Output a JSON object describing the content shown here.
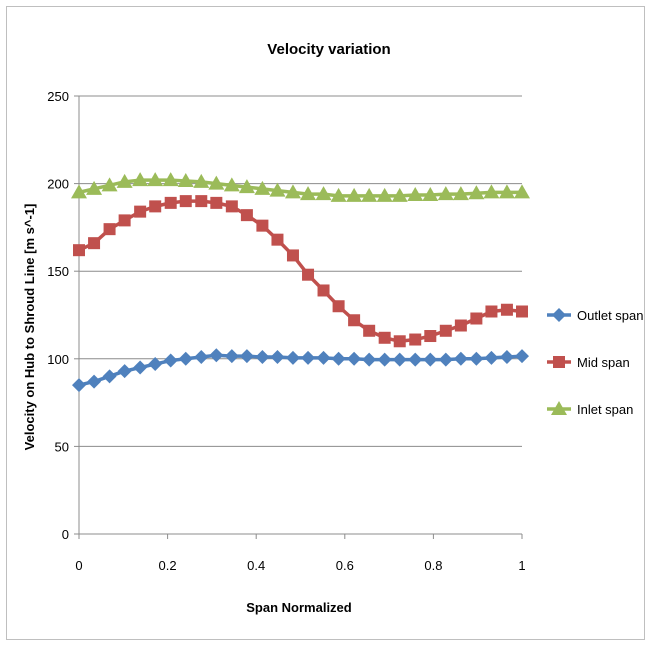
{
  "chart_data": {
    "type": "line",
    "title": "Velocity variation",
    "xlabel": "Span Normalized",
    "ylabel": "Velocity on Hub to Shroud Line [m s^-1]",
    "xlim": [
      0,
      1
    ],
    "ylim": [
      0,
      250
    ],
    "xticks": [
      "0",
      "0.2",
      "0.4",
      "0.6",
      "0.8",
      "1"
    ],
    "xtick_values": [
      0,
      0.2,
      0.4,
      0.6,
      0.8,
      1
    ],
    "yticks": [
      "0",
      "50",
      "100",
      "150",
      "200",
      "250"
    ],
    "ytick_values": [
      0,
      50,
      100,
      150,
      200,
      250
    ],
    "grid": "horizontal",
    "legend_position": "right",
    "series": [
      {
        "name": "Outlet span",
        "color": "#4f81bd",
        "marker": "diamond",
        "x": [
          0,
          0.034,
          0.069,
          0.103,
          0.138,
          0.172,
          0.207,
          0.241,
          0.276,
          0.31,
          0.345,
          0.379,
          0.414,
          0.448,
          0.483,
          0.517,
          0.552,
          0.586,
          0.621,
          0.655,
          0.69,
          0.724,
          0.759,
          0.793,
          0.828,
          0.862,
          0.897,
          0.931,
          0.966,
          1
        ],
        "y": [
          85,
          87,
          90,
          93,
          95,
          97,
          99,
          100,
          101,
          102,
          101.5,
          101.5,
          101,
          101,
          100.5,
          100.5,
          100.5,
          100,
          100,
          99.5,
          99.5,
          99.5,
          99.5,
          99.5,
          99.5,
          100,
          100,
          100.5,
          101,
          101.5
        ]
      },
      {
        "name": "Mid span",
        "color": "#c0504d",
        "marker": "square",
        "x": [
          0,
          0.034,
          0.069,
          0.103,
          0.138,
          0.172,
          0.207,
          0.241,
          0.276,
          0.31,
          0.345,
          0.379,
          0.414,
          0.448,
          0.483,
          0.517,
          0.552,
          0.586,
          0.621,
          0.655,
          0.69,
          0.724,
          0.759,
          0.793,
          0.828,
          0.862,
          0.897,
          0.931,
          0.966,
          1
        ],
        "y": [
          162,
          166,
          174,
          179,
          184,
          187,
          189,
          190,
          190,
          189,
          187,
          182,
          176,
          168,
          159,
          148,
          139,
          130,
          122,
          116,
          112,
          110,
          111,
          113,
          116,
          119,
          123,
          127,
          128,
          127
        ]
      },
      {
        "name": "Inlet span",
        "color": "#9bbb59",
        "marker": "triangle",
        "x": [
          0,
          0.034,
          0.069,
          0.103,
          0.138,
          0.172,
          0.207,
          0.241,
          0.276,
          0.31,
          0.345,
          0.379,
          0.414,
          0.448,
          0.483,
          0.517,
          0.552,
          0.586,
          0.621,
          0.655,
          0.69,
          0.724,
          0.759,
          0.793,
          0.828,
          0.862,
          0.897,
          0.931,
          0.966,
          1
        ],
        "y": [
          195,
          197,
          199,
          201,
          202,
          202,
          202,
          201.5,
          201,
          200,
          199,
          198,
          197,
          196,
          195,
          194,
          194,
          193,
          193,
          193,
          193,
          193,
          193.5,
          193.5,
          194,
          194,
          194.5,
          195,
          195,
          195
        ]
      }
    ]
  }
}
